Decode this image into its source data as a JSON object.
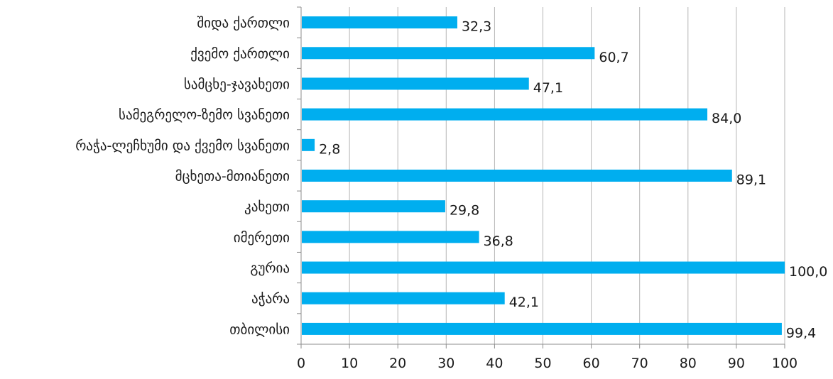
{
  "chart_data": {
    "type": "bar",
    "orientation": "horizontal",
    "title": "",
    "xlabel": "",
    "ylabel": "",
    "categories": [
      "შიდა ქართლი",
      "ქვემო ქართლი",
      "სამცხე-ჯავახეთი",
      "სამეგრელო-ზემო სვანეთი",
      "რაჭა-ლეჩხუმი და ქვემო სვანეთი",
      "მცხეთა-მთიანეთი",
      "კახეთი",
      "იმერეთი",
      "გურია",
      "აჭარა",
      "თბილისი"
    ],
    "values": [
      32.3,
      60.7,
      47.1,
      84.0,
      2.8,
      89.1,
      29.8,
      36.8,
      100.0,
      42.1,
      99.4
    ],
    "value_labels": [
      "32,3",
      "60,7",
      "47,1",
      "84,0",
      "2,8",
      "89,1",
      "29,8",
      "36,8",
      "100,0",
      "42,1",
      "99,4"
    ],
    "xlim": [
      0,
      100
    ],
    "x_ticks": [
      0,
      10,
      20,
      30,
      40,
      50,
      60,
      70,
      80,
      90,
      100
    ],
    "grid": "vertical",
    "legend": "none",
    "colors": {
      "bar": "#00AEEF",
      "grid": "#b5b5b5",
      "axis": "#8c8c8c",
      "text": "#1a1a1a"
    }
  }
}
